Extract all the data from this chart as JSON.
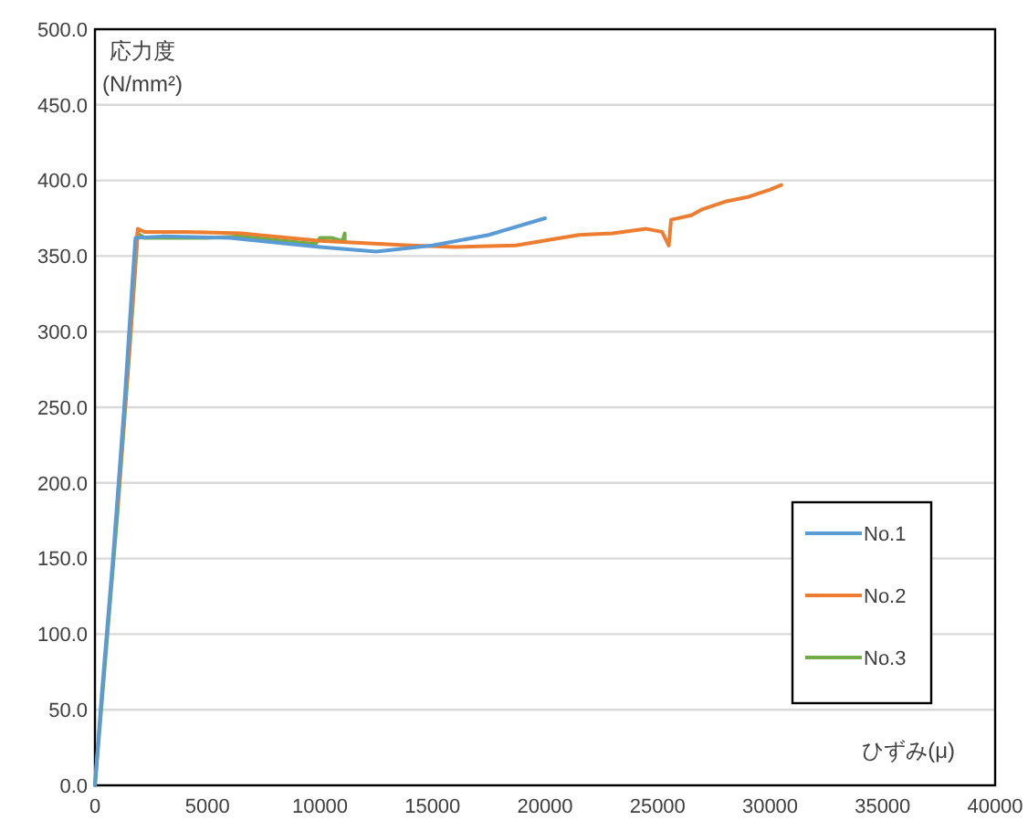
{
  "chart_data": {
    "type": "line",
    "xlabel": "ひずみ(μ)",
    "ylabel": "応力度\n(N/mm²)",
    "xlim": [
      0,
      40000
    ],
    "xticks": [
      0,
      5000,
      10000,
      15000,
      20000,
      25000,
      30000,
      35000,
      40000
    ],
    "ylim": [
      0,
      500
    ],
    "yticks": [
      {
        "value": 0,
        "label": "0.0"
      },
      {
        "value": 50,
        "label": "50.0"
      },
      {
        "value": 100,
        "label": "100.0"
      },
      {
        "value": 150,
        "label": "150.0"
      },
      {
        "value": 200,
        "label": "200.0"
      },
      {
        "value": 250,
        "label": "250.0"
      },
      {
        "value": 300,
        "label": "300.0"
      },
      {
        "value": 350,
        "label": "350.0"
      },
      {
        "value": 400,
        "label": "400.0"
      },
      {
        "value": 450,
        "label": "450.0"
      },
      {
        "value": 500,
        "label": "500.0"
      }
    ],
    "grid": "y",
    "legend": "bottom right",
    "marker": "none",
    "line_style": "solid",
    "series": [
      {
        "name": "No.1",
        "color": "#5b9bd5",
        "x": [
          0,
          300,
          800,
          1300,
          1650,
          1800,
          3000,
          6000,
          10000,
          12500,
          15000,
          17500,
          20000
        ],
        "values": [
          0,
          60,
          150,
          250,
          330,
          362,
          363,
          362,
          356,
          353,
          357,
          364,
          375
        ]
      },
      {
        "name": "No.2",
        "color": "#ed7d31",
        "x": [
          1000,
          1500,
          1900,
          2200,
          4000,
          6500,
          10000,
          14000,
          16000,
          18700,
          21500,
          23000,
          24500,
          25200,
          25400,
          25500,
          25600,
          26500,
          27000,
          28000,
          29000,
          30000,
          30500
        ],
        "values": [
          185,
          285,
          368,
          366,
          366,
          365,
          360,
          357,
          356,
          357,
          364,
          365,
          368,
          366,
          360,
          357,
          374,
          377,
          381,
          386,
          389,
          394,
          397
        ]
      },
      {
        "name": "No.3",
        "color": "#70ad47",
        "x": [
          0,
          500,
          1000,
          1500,
          1900,
          2200,
          5000,
          6500,
          9800,
          10000,
          10500,
          11000,
          11100,
          11100
        ],
        "values": [
          0,
          90,
          180,
          280,
          365,
          362,
          362,
          363,
          358,
          362,
          362,
          360,
          365,
          360
        ]
      }
    ]
  }
}
